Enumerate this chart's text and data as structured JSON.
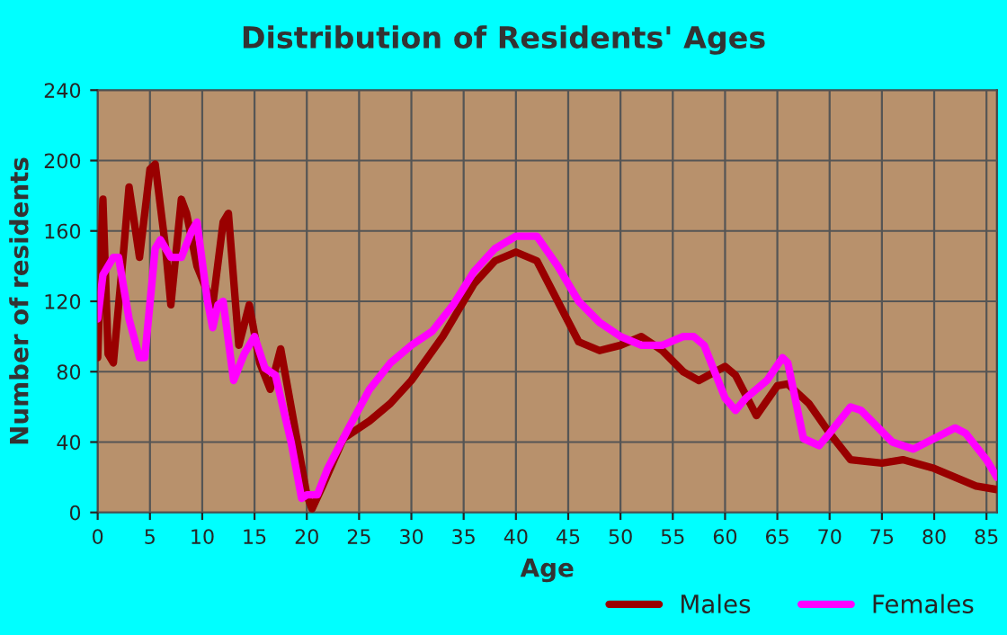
{
  "chart_data": {
    "type": "line",
    "title": "Distribution of Residents' Ages",
    "xlabel": "Age",
    "ylabel": "Number of residents",
    "xlim": [
      0,
      86
    ],
    "xticks": [
      0,
      5,
      10,
      15,
      20,
      25,
      30,
      35,
      40,
      45,
      50,
      55,
      60,
      65,
      70,
      75,
      80,
      85
    ],
    "ylim": [
      0,
      240
    ],
    "yticks": [
      0,
      40,
      80,
      120,
      160,
      200,
      240
    ],
    "grid": true,
    "legend": "bottom right",
    "line_style": "solid",
    "series": [
      {
        "name": "Males",
        "color": "#990000",
        "x": [
          0,
          0.5,
          1,
          1.5,
          2.5,
          3,
          4,
          5,
          5.5,
          6.5,
          7,
          8,
          8.5,
          9.5,
          11,
          12,
          12.5,
          13.5,
          14.5,
          15.5,
          16.5,
          17.5,
          18.5,
          20,
          20.5,
          21.5,
          23.5,
          26,
          28,
          30,
          33,
          36,
          38,
          40,
          42,
          44,
          46,
          48,
          50,
          52,
          54,
          56,
          57.5,
          60,
          61,
          63,
          65,
          66,
          68,
          70,
          72,
          75,
          77,
          80,
          82,
          84,
          86
        ],
        "values": [
          88,
          178,
          90,
          85,
          150,
          185,
          145,
          195,
          198,
          150,
          118,
          178,
          170,
          140,
          118,
          165,
          170,
          95,
          118,
          85,
          70,
          93,
          60,
          10,
          2,
          15,
          42,
          52,
          62,
          75,
          100,
          130,
          143,
          148,
          143,
          120,
          97,
          92,
          95,
          100,
          92,
          80,
          75,
          83,
          78,
          55,
          72,
          73,
          62,
          45,
          30,
          28,
          30,
          25,
          20,
          15,
          13
        ]
      },
      {
        "name": "Females",
        "color": "#ff00ff",
        "x": [
          0,
          0.5,
          1.5,
          2,
          3,
          4,
          4.5,
          5.5,
          6,
          7,
          8,
          9,
          9.5,
          10.5,
          11,
          11.5,
          12,
          13,
          14,
          15,
          16,
          17,
          18.5,
          19.5,
          20,
          21,
          22,
          24,
          26,
          28,
          30,
          32,
          34,
          36,
          38,
          40,
          42,
          44,
          46,
          48,
          50,
          52,
          54,
          56,
          57,
          58,
          60,
          61,
          62,
          64,
          65.5,
          66,
          67.5,
          69,
          70,
          72,
          73,
          76,
          78,
          80,
          82,
          83,
          85,
          86
        ],
        "values": [
          110,
          135,
          145,
          145,
          110,
          88,
          88,
          150,
          155,
          145,
          145,
          160,
          165,
          120,
          105,
          118,
          120,
          75,
          90,
          100,
          82,
          78,
          40,
          8,
          10,
          10,
          25,
          48,
          70,
          85,
          95,
          103,
          118,
          137,
          150,
          157,
          157,
          140,
          120,
          108,
          100,
          95,
          95,
          100,
          100,
          95,
          65,
          58,
          65,
          75,
          88,
          85,
          42,
          38,
          45,
          60,
          58,
          40,
          36,
          42,
          48,
          45,
          30,
          20
        ]
      }
    ]
  }
}
